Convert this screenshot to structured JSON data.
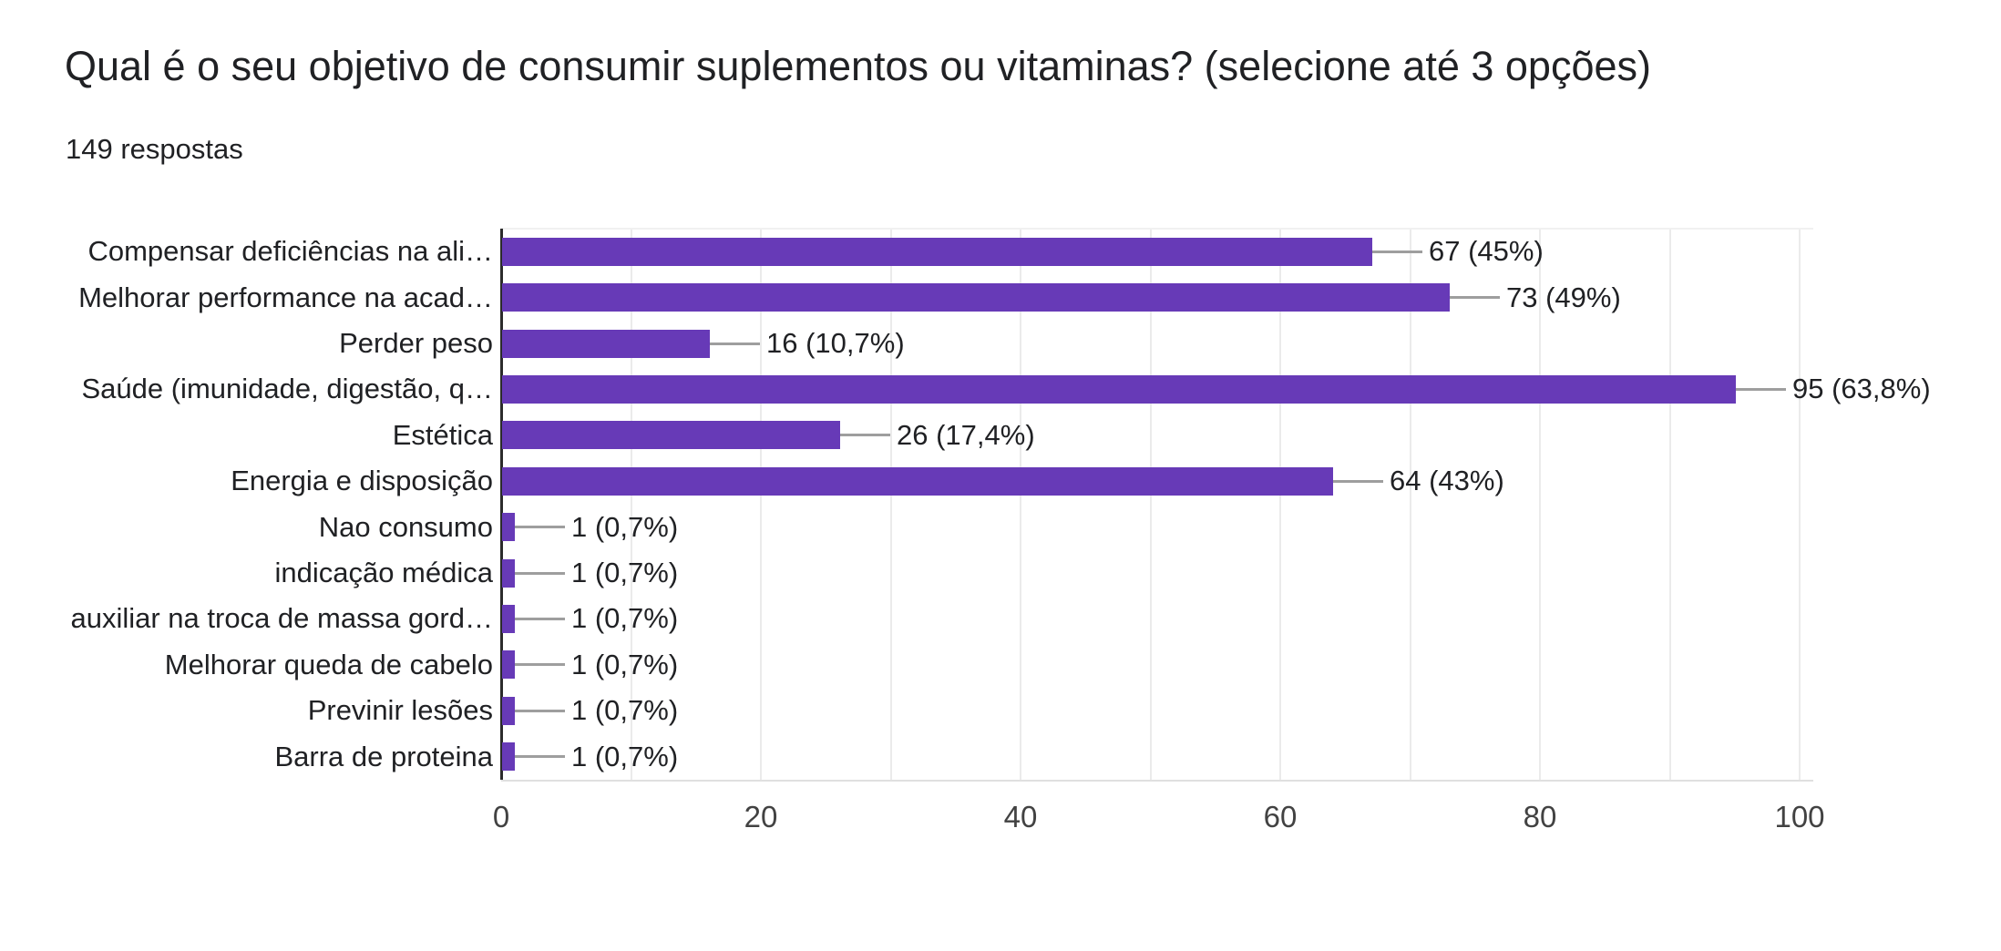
{
  "header": {
    "title": "Qual é o seu objetivo de consumir suplementos ou vitaminas? (selecione até 3 opções)",
    "responses": "149 respostas"
  },
  "chart_data": {
    "type": "bar",
    "orientation": "horizontal",
    "title": "Qual é o seu objetivo de consumir suplementos ou vitaminas? (selecione até 3 opções)",
    "subtitle": "149 respostas",
    "categories": [
      "Compensar deficiências na ali…",
      "Melhorar performance na acad…",
      "Perder peso",
      "Saúde (imunidade, digestão, q…",
      "Estética",
      "Energia e disposição",
      "Nao consumo",
      "indicação médica",
      "auxiliar na troca de massa gord…",
      "Melhorar queda de cabelo",
      "Previnir lesões",
      "Barra de proteina"
    ],
    "values": [
      67,
      73,
      16,
      95,
      26,
      64,
      1,
      1,
      1,
      1,
      1,
      1
    ],
    "value_labels": [
      "67 (45%)",
      "73 (49%)",
      "16 (10,7%)",
      "95 (63,8%)",
      "26 (17,4%)",
      "64 (43%)",
      "1 (0,7%)",
      "1 (0,7%)",
      "1 (0,7%)",
      "1 (0,7%)",
      "1 (0,7%)",
      "1 (0,7%)"
    ],
    "xlim": [
      0,
      100
    ],
    "x_ticks": [
      0,
      20,
      40,
      60,
      80,
      100
    ],
    "gridline_step": 10,
    "legend": "none",
    "colors": {
      "bar": "#673ab7",
      "stem": "#9e9e9e",
      "gridline": "#ebebeb",
      "axis_line": "#2b2b2b",
      "plot_topline": "#f1f1f1",
      "baseline": "#e0e0e0",
      "text": "#202124",
      "tick_text": "#424242",
      "background": "#ffffff"
    }
  }
}
